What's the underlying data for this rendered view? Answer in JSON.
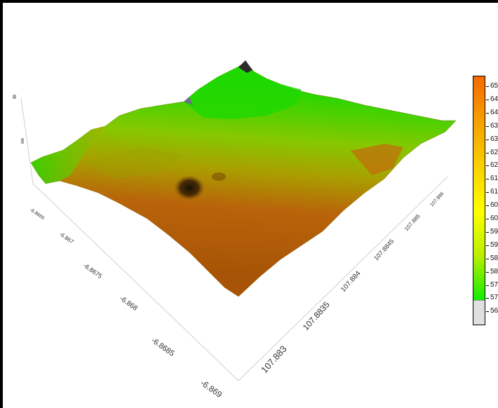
{
  "chart_data": {
    "type": "surface3d",
    "x_axis": {
      "ticks": [
        "107.883",
        "107.8835",
        "107.884",
        "107.8845",
        "107.885",
        "107.886"
      ]
    },
    "y_axis": {
      "ticks": [
        "-6.8665",
        "-6.867",
        "-6.8675",
        "-6.868",
        "-6.8685",
        "-6.869"
      ]
    },
    "z_axis": {
      "ticks": [
        "",
        ""
      ]
    },
    "colorbar": {
      "labels": [
        "65",
        "64",
        "64",
        "63",
        "63",
        "62",
        "62",
        "61",
        "61",
        "60",
        "60",
        "59",
        "59",
        "58",
        "58",
        "57",
        "57",
        "56"
      ],
      "colors": [
        "#f46a00",
        "#f6a000",
        "#f9d000",
        "#ffff00",
        "#b8ef00",
        "#11ec00"
      ],
      "below_range_color": "#e0e0e0"
    },
    "surface_colors": {
      "high": "#b65c06",
      "mid": "#a8b600",
      "low": "#22dd00",
      "peak": "#333333"
    }
  }
}
